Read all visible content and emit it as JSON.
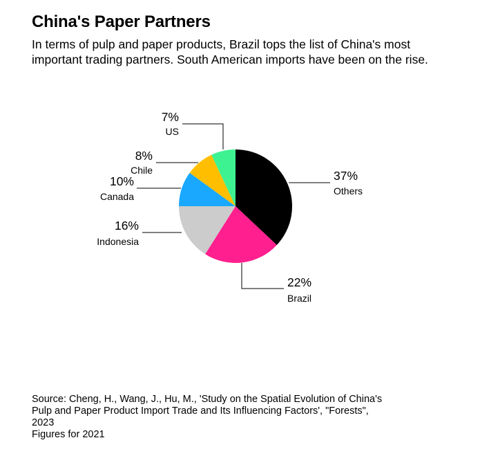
{
  "title": "China's Paper Partners",
  "subtitle": "In terms of pulp and paper products, Brazil tops the list of China's most important trading partners. South American imports have been on the rise.",
  "source": {
    "line1": "Source: Cheng, H., Wang, J., Hu, M., 'Study on the Spatial Evolution of China's",
    "line2": "Pulp and Paper Product Import Trade and Its Influencing Factors', \"Forests\",",
    "line3": "2023",
    "note": "Figures for 2021"
  },
  "chart_data": {
    "type": "pie",
    "start": "12 o'clock, clockwise",
    "slices": [
      {
        "label": "Others",
        "value": 37,
        "display": "37%",
        "color": "#000000"
      },
      {
        "label": "Brazil",
        "value": 22,
        "display": "22%",
        "color": "#ff1f8e"
      },
      {
        "label": "Indonesia",
        "value": 16,
        "display": "16%",
        "color": "#cccccc"
      },
      {
        "label": "Canada",
        "value": 10,
        "display": "10%",
        "color": "#1aa8ff"
      },
      {
        "label": "Chile",
        "value": 8,
        "display": "8%",
        "color": "#ffbf00"
      },
      {
        "label": "US",
        "value": 7,
        "display": "7%",
        "color": "#3df291"
      }
    ]
  }
}
